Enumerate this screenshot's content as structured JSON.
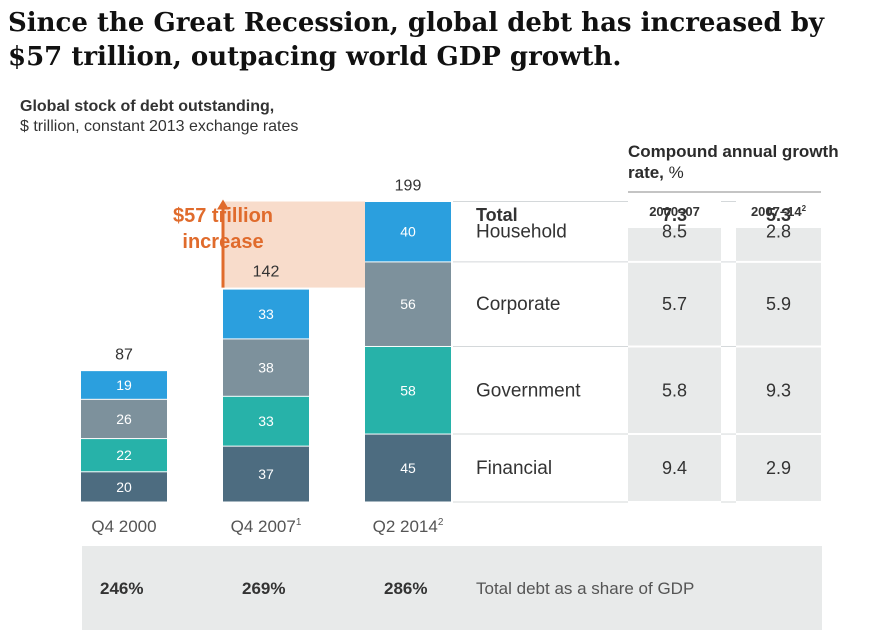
{
  "headline": "Since the Great Recession, global debt has increased by $57 trillion, outpacing world GDP growth.",
  "subtitle": {
    "line1": "Global stock of debt outstanding,",
    "line2": "$ trillion, constant 2013 exchange rates"
  },
  "cagr_header": {
    "bold": "Compound annual growth rate,",
    "unit": "%"
  },
  "annotation": {
    "line1": "$57 trillion",
    "line2": "increase"
  },
  "colors": {
    "household": "#2b9fde",
    "corporate": "#7d919c",
    "government": "#27b2a9",
    "financial": "#4d6c80",
    "accent": "#e06b2c",
    "highlight": "#f8dccb"
  },
  "chart_data": {
    "type": "bar",
    "stacked": true,
    "categories": [
      "Q4 2000",
      "Q4 2007",
      "Q2 2014"
    ],
    "category_footnotes": [
      "",
      "1",
      "2"
    ],
    "series": [
      {
        "name": "Financial",
        "values": [
          20,
          37,
          45
        ]
      },
      {
        "name": "Government",
        "values": [
          22,
          33,
          58
        ]
      },
      {
        "name": "Corporate",
        "values": [
          26,
          38,
          56
        ]
      },
      {
        "name": "Household",
        "values": [
          19,
          33,
          40
        ]
      }
    ],
    "totals": [
      87,
      142,
      199
    ],
    "table": {
      "columns": [
        "2000–07",
        "2007–14"
      ],
      "column_footnotes": [
        "",
        "2"
      ],
      "rows": [
        {
          "label": "Total",
          "values": [
            "7.3",
            "5.3"
          ]
        },
        {
          "label": "Household",
          "values": [
            "8.5",
            "2.8"
          ]
        },
        {
          "label": "Corporate",
          "values": [
            "5.7",
            "5.9"
          ]
        },
        {
          "label": "Government",
          "values": [
            "5.8",
            "9.3"
          ]
        },
        {
          "label": "Financial",
          "values": [
            "9.4",
            "2.9"
          ]
        }
      ]
    },
    "debt_to_gdp": {
      "values": [
        "246%",
        "269%",
        "286%"
      ],
      "label": "Total debt as a share of GDP"
    }
  }
}
